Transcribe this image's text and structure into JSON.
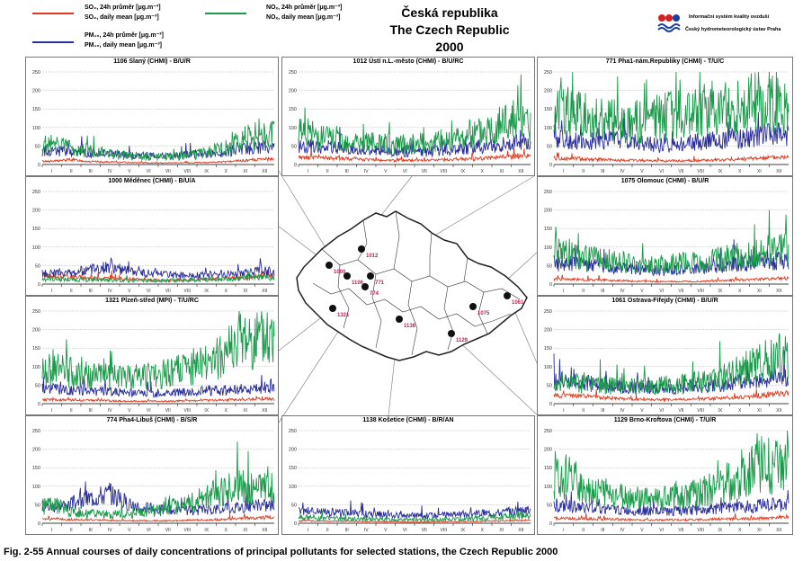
{
  "legend": {
    "so2_24h": "SO₂, 24h průměr [μg.m⁻³]",
    "so2_daily": "SO₂, daily mean [μg.m⁻³]",
    "pm10_24h": "PM₁₀, 24h průměr [μg.m⁻³]",
    "pm10_daily": "PM₁₀, daily mean [μg.m⁻³]",
    "nox_24h": "NOₓ, 24h průměr [μg.m⁻³]",
    "nox_daily": "NOₓ, daily mean [μg.m⁻³]"
  },
  "title": {
    "line1": "Česká republika",
    "line2": "The Czech Republic",
    "line3": "2000"
  },
  "logo": {
    "line1": "Informační systém kvality ovzduší",
    "line2": "Český hydrometeorologický ústav Praha"
  },
  "caption": "Fig. 2-55  Annual courses of daily concentrations of principal pollutants for selected stations, the Czech Republic 2000",
  "colors": {
    "so2": "#e03a1e",
    "pm10": "#2b2f99",
    "nox": "#1a9a4a"
  },
  "chart_data": [
    {
      "type": "line",
      "title": "1106 Slaný (CHMI)  -  B/U/R",
      "ylim": [
        0,
        250
      ],
      "yticks": [
        0,
        50,
        100,
        150,
        200,
        250
      ],
      "xticks": [
        "I",
        "II",
        "III",
        "IV",
        "V",
        "VI",
        "VII",
        "VIII",
        "IX",
        "X",
        "XI",
        "XII"
      ],
      "series": [
        {
          "name": "SO2",
          "values": [
            8,
            12,
            7,
            6,
            5,
            4,
            4,
            4,
            5,
            7,
            10,
            13
          ]
        },
        {
          "name": "PM10",
          "values": [
            32,
            30,
            28,
            25,
            22,
            22,
            20,
            24,
            26,
            30,
            38,
            40
          ]
        },
        {
          "name": "NOx",
          "values": [
            45,
            38,
            30,
            24,
            20,
            18,
            16,
            20,
            28,
            38,
            60,
            70
          ]
        }
      ]
    },
    {
      "type": "line",
      "title": "1012 Ústí n.L.-město (CHMI)  -  B/U/RC",
      "ylim": [
        0,
        250
      ],
      "yticks": [
        0,
        50,
        100,
        150,
        200,
        250
      ],
      "xticks": [
        "I",
        "II",
        "III",
        "IV",
        "V",
        "VI",
        "VII",
        "VIII",
        "IX",
        "X",
        "XI",
        "XII"
      ],
      "series": [
        {
          "name": "SO2",
          "values": [
            18,
            16,
            14,
            12,
            10,
            10,
            10,
            11,
            12,
            15,
            18,
            20
          ]
        },
        {
          "name": "PM10",
          "values": [
            45,
            42,
            38,
            34,
            32,
            30,
            30,
            34,
            38,
            42,
            50,
            55
          ]
        },
        {
          "name": "NOx",
          "values": [
            70,
            62,
            55,
            50,
            48,
            46,
            50,
            55,
            65,
            80,
            105,
            95
          ]
        }
      ]
    },
    {
      "type": "line",
      "title": "771 Pha1-nám.Republiky (CHMI)  -  T/U/C",
      "ylim": [
        0,
        250
      ],
      "yticks": [
        0,
        50,
        100,
        150,
        200,
        250
      ],
      "xticks": [
        "I",
        "II",
        "III",
        "IV",
        "V",
        "VI",
        "VII",
        "VIII",
        "IX",
        "X",
        "XI",
        "XII"
      ],
      "series": [
        {
          "name": "SO2",
          "values": [
            15,
            14,
            12,
            10,
            10,
            9,
            9,
            10,
            11,
            13,
            16,
            18
          ]
        },
        {
          "name": "PM10",
          "values": [
            60,
            55,
            58,
            62,
            50,
            45,
            48,
            55,
            58,
            62,
            70,
            72
          ]
        },
        {
          "name": "NOx",
          "values": [
            120,
            110,
            105,
            95,
            100,
            110,
            120,
            125,
            130,
            140,
            150,
            140
          ]
        }
      ]
    },
    {
      "type": "line",
      "title": "1000 Měděnec (CHMI)  -  B/U/A",
      "ylim": [
        0,
        250
      ],
      "yticks": [
        0,
        50,
        100,
        150,
        200,
        250
      ],
      "xticks": [
        "I",
        "II",
        "III",
        "IV",
        "V",
        "VI",
        "VII",
        "VIII",
        "IX",
        "X",
        "XI",
        "XII"
      ],
      "series": [
        {
          "name": "SO2",
          "values": [
            20,
            18,
            15,
            14,
            12,
            10,
            9,
            10,
            12,
            14,
            16,
            20
          ]
        },
        {
          "name": "PM10",
          "values": [
            25,
            28,
            35,
            40,
            30,
            25,
            22,
            20,
            22,
            25,
            28,
            30
          ]
        },
        {
          "name": "NOx",
          "values": [
            12,
            10,
            10,
            9,
            8,
            8,
            8,
            9,
            10,
            12,
            14,
            15
          ]
        }
      ]
    },
    {
      "type": "line",
      "title": "1075 Olomouc (CHMI)  -  B/U/R",
      "ylim": [
        0,
        250
      ],
      "yticks": [
        0,
        50,
        100,
        150,
        200,
        250
      ],
      "xticks": [
        "I",
        "II",
        "III",
        "IV",
        "V",
        "VI",
        "VII",
        "VIII",
        "IX",
        "X",
        "XI",
        "XII"
      ],
      "series": [
        {
          "name": "SO2",
          "values": [
            12,
            11,
            10,
            8,
            7,
            6,
            6,
            7,
            8,
            10,
            12,
            14
          ]
        },
        {
          "name": "PM10",
          "values": [
            50,
            45,
            42,
            38,
            35,
            32,
            34,
            38,
            42,
            46,
            52,
            55
          ]
        },
        {
          "name": "NOx",
          "values": [
            75,
            60,
            55,
            50,
            45,
            45,
            48,
            52,
            58,
            65,
            75,
            80
          ]
        }
      ]
    },
    {
      "type": "line",
      "title": "1321 Plzeň-střed (MPI)  -  T/U/RC",
      "ylim": [
        0,
        250
      ],
      "yticks": [
        0,
        50,
        100,
        150,
        200,
        250
      ],
      "xticks": [
        "I",
        "II",
        "III",
        "IV",
        "V",
        "VI",
        "VII",
        "VIII",
        "IX",
        "X",
        "XI",
        "XII"
      ],
      "series": [
        {
          "name": "SO2",
          "values": [
            10,
            9,
            8,
            7,
            6,
            6,
            6,
            7,
            8,
            9,
            10,
            12
          ]
        },
        {
          "name": "PM10",
          "values": [
            35,
            32,
            30,
            28,
            26,
            25,
            26,
            28,
            30,
            32,
            35,
            38
          ]
        },
        {
          "name": "NOx",
          "values": [
            80,
            70,
            65,
            60,
            62,
            65,
            70,
            80,
            95,
            120,
            150,
            140
          ]
        }
      ]
    },
    {
      "type": "line",
      "title": "1061 Ostrava-Fifejdy (CHMI)  -  B/U/R",
      "ylim": [
        0,
        250
      ],
      "yticks": [
        0,
        50,
        100,
        150,
        200,
        250
      ],
      "xticks": [
        "I",
        "II",
        "III",
        "IV",
        "V",
        "VI",
        "VII",
        "VIII",
        "IX",
        "X",
        "XI",
        "XII"
      ],
      "series": [
        {
          "name": "SO2",
          "values": [
            20,
            18,
            15,
            12,
            10,
            10,
            10,
            12,
            14,
            16,
            20,
            24
          ]
        },
        {
          "name": "PM10",
          "values": [
            55,
            50,
            45,
            40,
            38,
            35,
            36,
            40,
            45,
            52,
            60,
            65
          ]
        },
        {
          "name": "NOx",
          "values": [
            50,
            45,
            42,
            40,
            40,
            42,
            45,
            50,
            60,
            75,
            95,
            110
          ]
        }
      ]
    },
    {
      "type": "line",
      "title": "774 Pha4-Libuš (CHMI)  -  B/S/R",
      "ylim": [
        0,
        250
      ],
      "yticks": [
        0,
        50,
        100,
        150,
        200,
        250
      ],
      "xticks": [
        "I",
        "II",
        "III",
        "IV",
        "V",
        "VI",
        "VII",
        "VIII",
        "IX",
        "X",
        "XI",
        "XII"
      ],
      "series": [
        {
          "name": "SO2",
          "values": [
            10,
            9,
            8,
            7,
            6,
            6,
            6,
            7,
            8,
            10,
            12,
            14
          ]
        },
        {
          "name": "PM10",
          "values": [
            40,
            45,
            60,
            70,
            45,
            35,
            30,
            30,
            32,
            35,
            40,
            42
          ]
        },
        {
          "name": "NOx",
          "values": [
            40,
            30,
            22,
            20,
            22,
            28,
            35,
            45,
            60,
            75,
            85,
            80
          ]
        }
      ]
    },
    {
      "type": "line",
      "title": "1138 Košetice (CHMI)  -  B/R/AN",
      "ylim": [
        0,
        250
      ],
      "yticks": [
        0,
        50,
        100,
        150,
        200,
        250
      ],
      "xticks": [
        "I",
        "II",
        "III",
        "IV",
        "V",
        "VI",
        "VII",
        "VIII",
        "IX",
        "X",
        "XI",
        "XII"
      ],
      "series": [
        {
          "name": "SO2",
          "values": [
            6,
            5,
            5,
            4,
            4,
            3,
            3,
            4,
            4,
            5,
            6,
            7
          ]
        },
        {
          "name": "PM10",
          "values": [
            28,
            26,
            25,
            22,
            20,
            18,
            18,
            20,
            22,
            24,
            26,
            30
          ]
        },
        {
          "name": "NOx",
          "values": [
            14,
            12,
            10,
            9,
            8,
            8,
            8,
            9,
            10,
            12,
            14,
            16
          ]
        }
      ]
    },
    {
      "type": "line",
      "title": "1129 Brno-Kroftova (CHMI)  -  T/U/R",
      "ylim": [
        0,
        250
      ],
      "yticks": [
        0,
        50,
        100,
        150,
        200,
        250
      ],
      "xticks": [
        "I",
        "II",
        "III",
        "IV",
        "V",
        "VI",
        "VII",
        "VIII",
        "IX",
        "X",
        "XI",
        "XII"
      ],
      "series": [
        {
          "name": "SO2",
          "values": [
            12,
            11,
            10,
            9,
            8,
            8,
            8,
            9,
            10,
            11,
            12,
            14
          ]
        },
        {
          "name": "PM10",
          "values": [
            40,
            38,
            35,
            32,
            30,
            28,
            30,
            32,
            35,
            38,
            42,
            45
          ]
        },
        {
          "name": "NOx",
          "values": [
            110,
            85,
            70,
            60,
            55,
            58,
            62,
            70,
            85,
            110,
            140,
            125
          ]
        }
      ]
    }
  ],
  "map": {
    "stations": [
      "1000",
      "1012",
      "1106",
      "774",
      "771",
      "1321",
      "1138",
      "1075",
      "1061",
      "1129"
    ]
  }
}
